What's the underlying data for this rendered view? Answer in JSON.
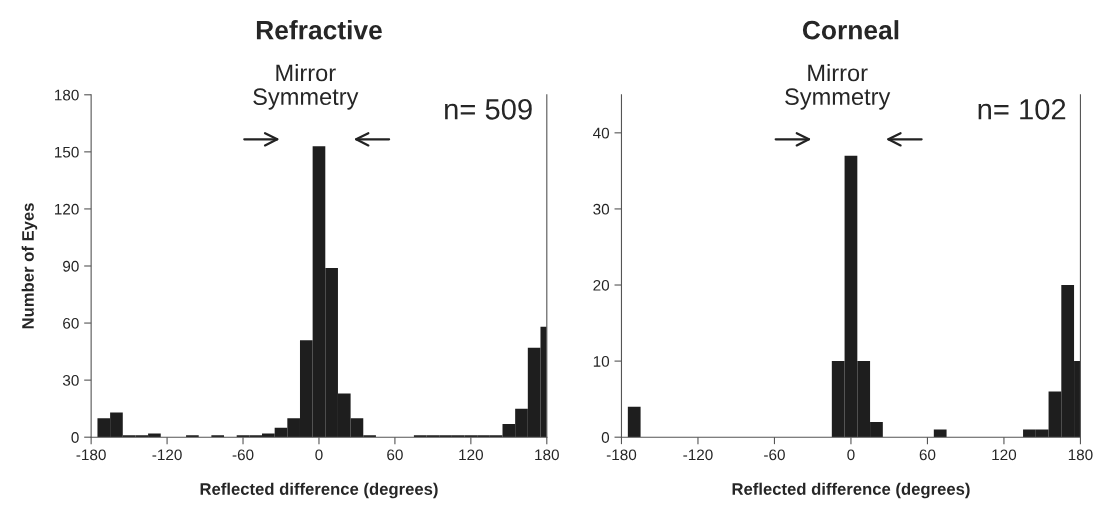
{
  "chart_data": [
    {
      "type": "histogram",
      "title": "Refractive",
      "xlabel": "Reflected difference (degrees)",
      "ylabel": "Number of Eyes",
      "bins": [
        -175,
        -165,
        -155,
        -145,
        -135,
        -125,
        -105,
        -95,
        -85,
        -75,
        -65,
        -55,
        -45,
        -35,
        -25,
        -15,
        -5,
        5,
        15,
        25,
        35,
        45,
        75,
        85,
        95,
        105,
        115,
        125,
        135,
        145,
        155,
        165,
        175,
        180
      ],
      "values": [
        10,
        13,
        1,
        1,
        2,
        0,
        1,
        0,
        1,
        0,
        1,
        1,
        2,
        5,
        10,
        51,
        153,
        89,
        23,
        10,
        1,
        0,
        1,
        1,
        1,
        1,
        1,
        1,
        1,
        7,
        15,
        47,
        58
      ],
      "color": "#1e1e1e",
      "xlim": [
        -180,
        180
      ],
      "xticks": [
        -180,
        -120,
        -60,
        0,
        60,
        120,
        180
      ],
      "ylim": [
        0,
        180
      ],
      "yticks": [
        0,
        30,
        60,
        90,
        120,
        150,
        180
      ],
      "grid": false,
      "annotations": [
        "Mirror\nSymmetry",
        "n= 509"
      ]
    },
    {
      "type": "histogram",
      "title": "Corneal",
      "xlabel": "Reflected difference (degrees)",
      "bins": [
        -175,
        -165,
        -15,
        -5,
        5,
        15,
        25,
        65,
        75,
        135,
        145,
        155,
        165,
        175,
        180
      ],
      "values": [
        4,
        0,
        10,
        37,
        10,
        2,
        0,
        1,
        0,
        1,
        1,
        6,
        20,
        10
      ],
      "color": "#1e1e1e",
      "xlim": [
        -180,
        180
      ],
      "xticks": [
        -180,
        -120,
        -60,
        0,
        60,
        120,
        180
      ],
      "ylim": [
        0,
        45
      ],
      "yticks": [
        0,
        10,
        20,
        30,
        40
      ],
      "grid": false,
      "annotations": [
        "Mirror\nSymmetry",
        "n= 102"
      ]
    }
  ]
}
